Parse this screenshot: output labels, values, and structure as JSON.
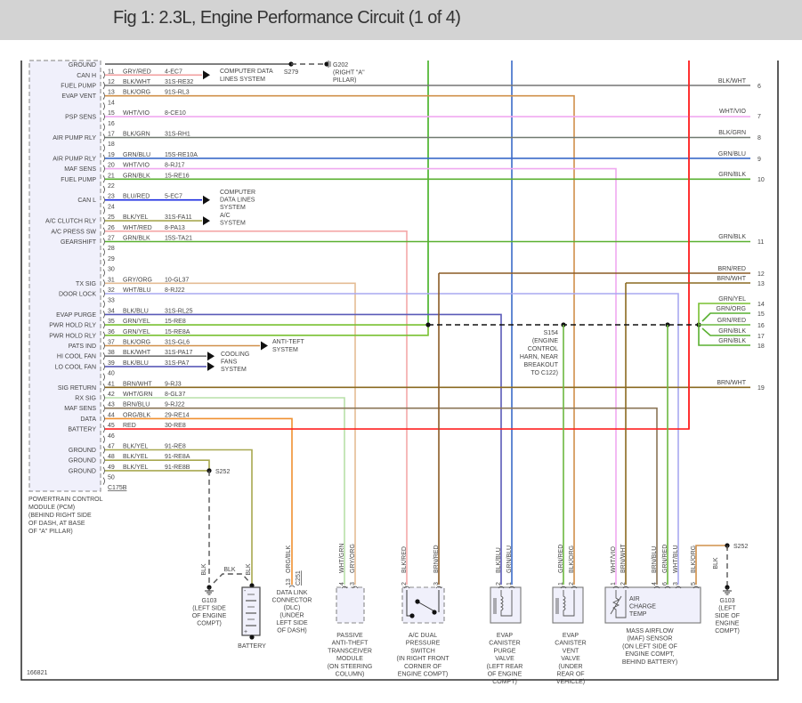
{
  "title": "Fig 1: 2.3L, Engine Performance Circuit (1 of 4)",
  "figure_id": "166821",
  "wire_colors": {
    "GRY/RED": "#f2a0a0",
    "BLK/WHT": "#747474",
    "BLK/ORG": "#d0904a",
    "WHT/VIO": "#f0a8f0",
    "BLK/GRN": "#707a70",
    "GRN/BLU": "#3a6ac8",
    "GRN/BLK": "#5ab030",
    "BLU/RED": "#1a2ae0",
    "BLK/YEL": "#a8a850",
    "WHT/RED": "#f4a8a8",
    "GRY/ORG": "#e4bc94",
    "WHT/BLU": "#a8a8f0",
    "BLK/BLU": "#5a5ab8",
    "GRN/YEL": "#78c030",
    "BRN/WHT": "#8a6a20",
    "WHT/GRN": "#b8e0a8",
    "BRN/BLU": "#8a7456",
    "ORG/BLK": "#f09030",
    "RED": "#ff2020",
    "BRN/RED": "#8a5a24",
    "GRN": "#40b020",
    "GRN/RED": "#6cb840",
    "GRN/ORG": "#58b030",
    "BLK": "#555555"
  },
  "pcm": {
    "ground_label": "GROUND",
    "rows": [
      {
        "pin": "11",
        "label": "CAN H",
        "wire": "GRY/RED",
        "circuit": "4-EC7"
      },
      {
        "pin": "12",
        "label": "FUEL PUMP",
        "wire": "BLK/WHT",
        "circuit": "31S-RE32"
      },
      {
        "pin": "13",
        "label": "EVAP VENT",
        "wire": "BLK/ORG",
        "circuit": "91S-RL3"
      },
      {
        "pin": "14",
        "label": "",
        "wire": "",
        "circuit": ""
      },
      {
        "pin": "15",
        "label": "PSP SENS",
        "wire": "WHT/VIO",
        "circuit": "8-CE10"
      },
      {
        "pin": "16",
        "label": "",
        "wire": "",
        "circuit": ""
      },
      {
        "pin": "17",
        "label": "AIR PUMP RLY",
        "wire": "BLK/GRN",
        "circuit": "31S-RH1"
      },
      {
        "pin": "18",
        "label": "",
        "wire": "",
        "circuit": ""
      },
      {
        "pin": "19",
        "label": "AIR PUMP RLY",
        "wire": "GRN/BLU",
        "circuit": "15S-RE10A"
      },
      {
        "pin": "20",
        "label": "MAF SENS",
        "wire": "WHT/VIO",
        "circuit": "8-RJ17"
      },
      {
        "pin": "21",
        "label": "FUEL PUMP",
        "wire": "GRN/BLK",
        "circuit": "15-RE16"
      },
      {
        "pin": "22",
        "label": "",
        "wire": "",
        "circuit": ""
      },
      {
        "pin": "23",
        "label": "CAN L",
        "wire": "BLU/RED",
        "circuit": "5-EC7"
      },
      {
        "pin": "24",
        "label": "",
        "wire": "",
        "circuit": ""
      },
      {
        "pin": "25",
        "label": "A/C CLUTCH RLY",
        "wire": "BLK/YEL",
        "circuit": "31S-FA11"
      },
      {
        "pin": "26",
        "label": "A/C PRESS SW",
        "wire": "WHT/RED",
        "circuit": "8-PA13"
      },
      {
        "pin": "27",
        "label": "GEARSHIFT",
        "wire": "GRN/BLK",
        "circuit": "15S-TA21"
      },
      {
        "pin": "28",
        "label": "",
        "wire": "",
        "circuit": ""
      },
      {
        "pin": "29",
        "label": "",
        "wire": "",
        "circuit": ""
      },
      {
        "pin": "30",
        "label": "",
        "wire": "",
        "circuit": ""
      },
      {
        "pin": "31",
        "label": "TX SIG",
        "wire": "GRY/ORG",
        "circuit": "10-GL37"
      },
      {
        "pin": "32",
        "label": "DOOR LOCK",
        "wire": "WHT/BLU",
        "circuit": "8-RJ22"
      },
      {
        "pin": "33",
        "label": "",
        "wire": "",
        "circuit": ""
      },
      {
        "pin": "34",
        "label": "EVAP PURGE",
        "wire": "BLK/BLU",
        "circuit": "31S-RL25"
      },
      {
        "pin": "35",
        "label": "PWR HOLD RLY",
        "wire": "GRN/YEL",
        "circuit": "15-RE8"
      },
      {
        "pin": "36",
        "label": "PWR HOLD RLY",
        "wire": "GRN/YEL",
        "circuit": "15-RE8A"
      },
      {
        "pin": "37",
        "label": "PATS IND",
        "wire": "BLK/ORG",
        "circuit": "31S-GL6"
      },
      {
        "pin": "38",
        "label": "HI COOL FAN",
        "wire": "BLK/WHT",
        "circuit": "31S-PA17"
      },
      {
        "pin": "39",
        "label": "LO COOL FAN",
        "wire": "BLK/BLU",
        "circuit": "31S-PA7"
      },
      {
        "pin": "40",
        "label": "",
        "wire": "",
        "circuit": ""
      },
      {
        "pin": "41",
        "label": "SIG RETURN",
        "wire": "BRN/WHT",
        "circuit": "9-RJ3"
      },
      {
        "pin": "42",
        "label": "RX SIG",
        "wire": "WHT/GRN",
        "circuit": "8-GL37"
      },
      {
        "pin": "43",
        "label": "MAF SENS",
        "wire": "BRN/BLU",
        "circuit": "9-RJ22"
      },
      {
        "pin": "44",
        "label": "DATA",
        "wire": "ORG/BLK",
        "circuit": "29-RE14"
      },
      {
        "pin": "45",
        "label": "BATTERY",
        "wire": "RED",
        "circuit": "30-RE8"
      },
      {
        "pin": "46",
        "label": "",
        "wire": "",
        "circuit": ""
      },
      {
        "pin": "47",
        "label": "GROUND",
        "wire": "BLK/YEL",
        "circuit": "91-RE8"
      },
      {
        "pin": "48",
        "label": "GROUND",
        "wire": "BLK/YEL",
        "circuit": "91-RE8A"
      },
      {
        "pin": "49",
        "label": "GROUND",
        "wire": "BLK/YEL",
        "circuit": "91-RE8B"
      },
      {
        "pin": "50",
        "label": "",
        "wire": "",
        "circuit": ""
      }
    ],
    "connector": "C175B",
    "description": [
      "POWERTRAIN CONTROL",
      "MODULE (PCM)",
      "(BEHIND RIGHT SIDE",
      "OF DASH, AT BASE",
      "OF \"A\" PILLAR)"
    ]
  },
  "destinations": {
    "can_h": [
      "COMPUTER DATA",
      "LINES SYSTEM"
    ],
    "can_l": [
      "COMPUTER",
      "DATA LINES",
      "SYSTEM"
    ],
    "ac": [
      "A/C",
      "SYSTEM"
    ],
    "anti_theft": [
      "ANTI-TEFT",
      "SYSTEM"
    ],
    "cooling": [
      "COOLING",
      "FANS",
      "SYSTEM"
    ]
  },
  "splices": {
    "s279": "S279",
    "g202": [
      "G202",
      "(RIGHT \"A\"",
      "PILLAR)"
    ],
    "s154": [
      "S154",
      "(ENGINE",
      "CONTROL",
      "HARN, NEAR",
      "BREAKOUT",
      "TO C122)"
    ],
    "s252_left": "S252",
    "s252_right": "S252"
  },
  "right_connector": [
    {
      "pin": "6",
      "wire": "BLK/WHT"
    },
    {
      "pin": "7",
      "wire": "WHT/VIO"
    },
    {
      "pin": "8",
      "wire": "BLK/GRN"
    },
    {
      "pin": "9",
      "wire": "GRN/BLU"
    },
    {
      "pin": "10",
      "wire": "GRN/BLK"
    },
    {
      "pin": "11",
      "wire": "GRN/BLK"
    },
    {
      "pin": "12",
      "wire": "BRN/RED"
    },
    {
      "pin": "13",
      "wire": "BRN/WHT"
    },
    {
      "pin": "14",
      "wire": "GRN/YEL"
    },
    {
      "pin": "15",
      "wire": "GRN/ORG"
    },
    {
      "pin": "16",
      "wire": "GRN/RED"
    },
    {
      "pin": "17",
      "wire": "GRN/BLK"
    },
    {
      "pin": "18",
      "wire": "GRN/BLK"
    },
    {
      "pin": "19",
      "wire": "BRN/WHT"
    }
  ],
  "ground_left": {
    "wire_a": "BLK",
    "wire_b": "BLK",
    "wire_c": "BLK",
    "label": [
      "G103",
      "(LEFT SIDE",
      "OF ENGINE",
      "COMPT)"
    ]
  },
  "battery": {
    "label": "BATTERY",
    "neg": "-",
    "pos": "+"
  },
  "dlc": {
    "pin": "13",
    "wire": "ORG/BLK",
    "connector": "C251",
    "label": [
      "DATA LINK",
      "CONNECTOR",
      "(DLC)",
      "(UNDER",
      "LEFT SIDE",
      "OF DASH)"
    ]
  },
  "components": [
    {
      "id": "pats",
      "pins": [
        {
          "num": "4",
          "wire": "WHT/GRN"
        },
        {
          "num": "3",
          "wire": "GRY/ORG"
        }
      ],
      "label": [
        "PASSIVE",
        "ANTI-THEFT",
        "TRANSCEIVER",
        "MODULE",
        "(ON STEERING",
        "COLUMN)"
      ]
    },
    {
      "id": "ac-switch",
      "pins": [
        {
          "num": "2",
          "wire": "BLK/RED"
        },
        {
          "num": "3",
          "wire": "BRN/RED"
        }
      ],
      "label": [
        "A/C DUAL",
        "PRESSURE",
        "SWITCH",
        "(IN RIGHT FRONT",
        "CORNER OF",
        "ENGINE COMPT)"
      ]
    },
    {
      "id": "evap-purge",
      "pins": [
        {
          "num": "2",
          "wire": "BLK/BLU"
        },
        {
          "num": "1",
          "wire": "GRN/BLU"
        }
      ],
      "label": [
        "EVAP",
        "CANISTER",
        "PURGE",
        "VALVE",
        "(LEFT REAR",
        "OF ENGINE",
        "COMPT)"
      ]
    },
    {
      "id": "evap-vent",
      "pins": [
        {
          "num": "1",
          "wire": "GRN/RED"
        },
        {
          "num": "2",
          "wire": "BLK/ORG"
        }
      ],
      "label": [
        "EVAP",
        "CANISTER",
        "VENT",
        "VALVE",
        "(UNDER",
        "REAR OF",
        "VEHICLE)"
      ]
    },
    {
      "id": "maf",
      "pins": [
        {
          "num": "1",
          "wire": "WHT/VIO"
        },
        {
          "num": "2",
          "wire": "BRN/WHT"
        },
        {
          "num": "4",
          "wire": "BRN/BLU"
        },
        {
          "num": "6",
          "wire": "GRN/RED"
        },
        {
          "num": "3",
          "wire": "WHT/BLU"
        },
        {
          "num": "5",
          "wire": "BLK/ORG"
        }
      ],
      "inner": [
        "AIR",
        "CHARGE",
        "TEMP"
      ],
      "label": [
        "MASS AIRFLOW",
        "(MAF) SENSOR",
        "(ON LEFT SIDE OF",
        "ENGINE COMPT,",
        "BEHIND BATTERY)"
      ]
    }
  ],
  "ground_right": {
    "wire": "BLK",
    "label": [
      "G103",
      "(LEFT",
      "SIDE OF",
      "ENGINE",
      "COMPT)"
    ]
  }
}
